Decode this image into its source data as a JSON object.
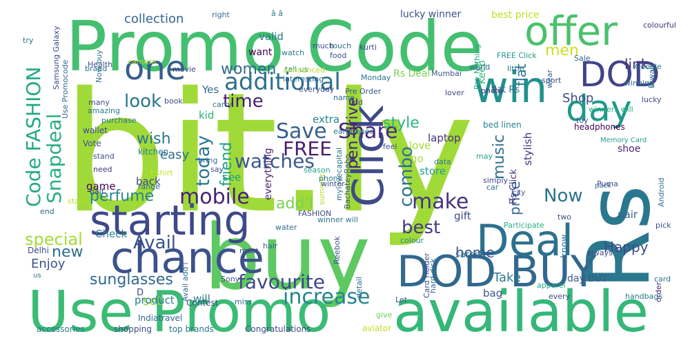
{
  "palette": [
    "#440154",
    "#482878",
    "#3e4989",
    "#31688e",
    "#26828e",
    "#1f9e89",
    "#35b779",
    "#6ece58",
    "#b5de2b",
    "#fde725"
  ],
  "words": [
    {
      "text": "bit.ly",
      "c": "#a0da39"
    },
    {
      "text": "buy",
      "c": "#5ec962"
    },
    {
      "text": "Promo Code",
      "c": "#44bf70"
    },
    {
      "text": "Use Promo",
      "c": "#3bbb75"
    },
    {
      "text": "Rs",
      "c": "#2a788e"
    },
    {
      "text": "available",
      "c": "#35b779"
    },
    {
      "text": "DOD BUY",
      "c": "#31688e"
    },
    {
      "text": "chance",
      "c": "#3b528b"
    },
    {
      "text": "starting",
      "c": "#3e4989"
    },
    {
      "text": "offer",
      "c": "#4ac16d"
    },
    {
      "text": "Click",
      "c": "#3e4a89"
    },
    {
      "text": "Deal",
      "c": "#2c718e"
    },
    {
      "text": "win",
      "c": "#21918c"
    },
    {
      "text": "DOD",
      "c": "#414487"
    },
    {
      "text": "day",
      "c": "#1f9a8a"
    },
    {
      "text": "one",
      "c": "#355f8d"
    },
    {
      "text": "additional",
      "c": "#2d708e"
    },
    {
      "text": "Code FASHION",
      "c": "#22a884"
    },
    {
      "text": "mobile",
      "c": "#482173"
    },
    {
      "text": "Snapdeal",
      "c": "#29af7f"
    },
    {
      "text": "Save",
      "c": "#34608d"
    },
    {
      "text": "Share",
      "c": "#482878"
    },
    {
      "text": "increase",
      "c": "#25858e"
    },
    {
      "text": "favourite",
      "c": "#3f4788"
    },
    {
      "text": "watches",
      "c": "#38598c"
    },
    {
      "text": "look",
      "c": "#2a768e"
    },
    {
      "text": "make",
      "c": "#46337f"
    },
    {
      "text": "Avail",
      "c": "#3b528b"
    },
    {
      "text": "best",
      "c": "#443983"
    },
    {
      "text": "time",
      "c": "#481d6f"
    },
    {
      "text": "today",
      "c": "#2a788e"
    },
    {
      "text": "combo",
      "c": "#2c728e"
    },
    {
      "text": "FREE",
      "c": "#481c6e"
    },
    {
      "text": "friend",
      "c": "#20a386"
    },
    {
      "text": "Now",
      "c": "#2c728e"
    },
    {
      "text": "special",
      "c": "#a5db36"
    },
    {
      "text": "sunglasses",
      "c": "#31678e"
    },
    {
      "text": "style",
      "c": "#2fb47c"
    },
    {
      "text": "add'l",
      "c": "#7ad151"
    },
    {
      "text": "perfume",
      "c": "#25848e"
    },
    {
      "text": "pen drive",
      "c": "#481f70"
    },
    {
      "text": "wish",
      "c": "#2a768e"
    },
    {
      "text": "women",
      "c": "#31678e"
    },
    {
      "text": "men",
      "c": "#c8e020"
    },
    {
      "text": "link",
      "c": "#46327e"
    },
    {
      "text": "new",
      "c": "#2e6d8e"
    },
    {
      "text": "music",
      "c": "#2e6e8e"
    },
    {
      "text": "Happy",
      "c": "#3e4c8a"
    },
    {
      "text": "home",
      "c": "#3b518b"
    },
    {
      "text": "price",
      "c": "#31678e"
    },
    {
      "text": "flat",
      "c": "#2c728e"
    },
    {
      "text": "collection",
      "c": "#32658e"
    },
    {
      "text": "Enjoy",
      "c": "#3b528b"
    },
    {
      "text": "Take",
      "c": "#2a788e"
    },
    {
      "text": "easy",
      "c": "#2e6e8e"
    },
    {
      "text": "Shop",
      "c": "#3e4c8a"
    },
    {
      "text": "set",
      "c": "#90d743"
    },
    {
      "text": "extra",
      "c": "#26828e"
    },
    {
      "text": "laptop",
      "c": "#472e7c"
    },
    {
      "text": "Keep",
      "c": "#35b779"
    },
    {
      "text": "see",
      "c": "#1fa088"
    },
    {
      "text": "kid",
      "c": "#29af7f"
    },
    {
      "text": "stylish",
      "c": "#46307e"
    },
    {
      "text": "product",
      "c": "#297b8e"
    },
    {
      "text": "bag",
      "c": "#3b528b"
    },
    {
      "text": "shoe",
      "c": "#482777"
    },
    {
      "text": "everything",
      "c": "#482475"
    },
    {
      "text": "game",
      "c": "#440154"
    },
    {
      "text": "valid",
      "c": "#2a788e"
    },
    {
      "text": "Yes",
      "c": "#31688e"
    },
    {
      "text": "Check",
      "c": "#26828e"
    },
    {
      "text": "back",
      "c": "#3e4a89"
    },
    {
      "text": "gift",
      "c": "#3e4989"
    },
    {
      "text": "pair",
      "c": "#355f8d"
    },
    {
      "text": "store",
      "c": "#1f9e89"
    },
    {
      "text": "love",
      "c": "#a5db36"
    },
    {
      "text": "go",
      "c": "#a8db34"
    },
    {
      "text": "will",
      "c": "#2a788e"
    },
    {
      "text": "best price",
      "c": "#c2df23"
    },
    {
      "text": "lucky winner",
      "c": "#3b528b"
    },
    {
      "text": "day BUY",
      "c": "#38588c"
    },
    {
      "text": "want",
      "c": "#440154"
    },
    {
      "text": "flat Rs",
      "c": "#31688e"
    },
    {
      "text": "Rs Click",
      "c": "#46307e"
    },
    {
      "text": "kitchen",
      "c": "#2a788e"
    },
    {
      "text": "wallet",
      "c": "#3e4a89"
    },
    {
      "text": "Vote",
      "c": "#3b528b"
    },
    {
      "text": "need",
      "c": "#46327e"
    },
    {
      "text": "range",
      "c": "#31688e"
    },
    {
      "text": "card",
      "c": "#287c8e"
    },
    {
      "text": "order",
      "c": "#482475"
    },
    {
      "text": "two",
      "c": "#3e4c8a"
    },
    {
      "text": "saree",
      "c": "#2d708e"
    },
    {
      "text": "know",
      "c": "#2d708e"
    },
    {
      "text": "D",
      "c": "#3e4989"
    },
    {
      "text": "Rs Deal",
      "c": "#7ad151"
    },
    {
      "text": "bed linen",
      "c": "#26828e"
    },
    {
      "text": "headphones",
      "c": "#440154"
    },
    {
      "text": "Memory Card",
      "c": "#1fa088"
    },
    {
      "text": "Google",
      "c": "#2a788e"
    },
    {
      "text": "colourful",
      "c": "#453781"
    },
    {
      "text": "lucky",
      "c": "#3e4989"
    },
    {
      "text": "toy",
      "c": "#3b528b"
    },
    {
      "text": "winners will",
      "c": "#27ad81"
    },
    {
      "text": "winning",
      "c": "#2c728e"
    },
    {
      "text": "Sale",
      "c": "#31688e"
    },
    {
      "text": "Diwali",
      "c": "#2e6e8e"
    },
    {
      "text": "sport",
      "c": "#3e4a89"
    },
    {
      "text": "wear",
      "c": "#355f8d"
    },
    {
      "text": "little",
      "c": "#2c718e"
    },
    {
      "text": "FREE Click",
      "c": "#1f9a8a"
    },
    {
      "text": "lover",
      "c": "#3e4c8a"
    },
    {
      "text": "Pay Nothing",
      "c": "#22a884"
    },
    {
      "text": "world",
      "c": "#31688e"
    },
    {
      "text": "photo",
      "c": "#443983"
    },
    {
      "text": "Mumbai",
      "c": "#3b528b"
    },
    {
      "text": "data",
      "c": "#2a788e"
    },
    {
      "text": "may",
      "c": "#22a884"
    },
    {
      "text": "feel",
      "c": "#3b528b"
    },
    {
      "text": "simply",
      "c": "#3e4c8a"
    },
    {
      "text": "car",
      "c": "#2e6e8e"
    },
    {
      "text": "city",
      "c": "#3e4989"
    },
    {
      "text": "pack",
      "c": "#31688e"
    },
    {
      "text": "Puma",
      "c": "#3e4a89"
    },
    {
      "text": "Android",
      "c": "#2c728e"
    },
    {
      "text": "pick",
      "c": "#3b528b"
    },
    {
      "text": "Participate",
      "c": "#27ad81"
    },
    {
      "text": "always",
      "c": "#3e4989"
    },
    {
      "text": "apparel",
      "c": "#22a884"
    },
    {
      "text": "every",
      "c": "#3e4a89"
    },
    {
      "text": "handbags",
      "c": "#2a788e"
    },
    {
      "text": "hard disk",
      "c": "#31688e"
    },
    {
      "text": "Card Holder",
      "c": "#3e4c8a"
    },
    {
      "text": "detail",
      "c": "#31688e"
    },
    {
      "text": "Let",
      "c": "#3b528b"
    },
    {
      "text": "give",
      "c": "#6ece58"
    },
    {
      "text": "aviator",
      "c": "#c2df23"
    },
    {
      "text": "Congratulations",
      "c": "#3e4989"
    },
    {
      "text": "top brands",
      "c": "#2a788e"
    },
    {
      "text": "Indiatravel",
      "c": "#31688e"
    },
    {
      "text": "shopping",
      "c": "#3e4a89"
    },
    {
      "text": "accessories",
      "c": "#287c8e"
    },
    {
      "text": "Delhi",
      "c": "#3e4989"
    },
    {
      "text": "us",
      "c": "#2c728e"
    },
    {
      "text": "Contest",
      "c": "#3b528b"
    },
    {
      "text": "miss",
      "c": "#2e6e8e"
    },
    {
      "text": "must",
      "c": "#3e4a89"
    },
    {
      "text": "Sony",
      "c": "#3e4c8a"
    },
    {
      "text": "Avail add'l",
      "c": "#31688e"
    },
    {
      "text": "Reebok",
      "c": "#3b528b"
    },
    {
      "text": "winner will",
      "c": "#2a788e"
    },
    {
      "text": "colour",
      "c": "#26828e"
    },
    {
      "text": "FASHION",
      "c": "#3e4989"
    },
    {
      "text": "water",
      "c": "#2e6e8e"
    },
    {
      "text": "hair",
      "c": "#31688e"
    },
    {
      "text": "summer",
      "c": "#b5de2b"
    },
    {
      "text": "mylovecapital",
      "c": "#2c728e"
    },
    {
      "text": "BachateyRaho",
      "c": "#3b528b"
    },
    {
      "text": "winter",
      "c": "#3e4a89"
    },
    {
      "text": "phone",
      "c": "#2a788e"
    },
    {
      "text": "season",
      "c": "#22a884"
    },
    {
      "text": "say",
      "c": "#3e4c8a"
    },
    {
      "text": "bring",
      "c": "#2e6e8e"
    },
    {
      "text": "t shirt",
      "c": "#c8e020"
    },
    {
      "text": "half",
      "c": "#3e4989"
    },
    {
      "text": "end",
      "c": "#31688e"
    },
    {
      "text": "start",
      "c": "#b5de2b"
    },
    {
      "text": "stand",
      "c": "#3b528b"
    },
    {
      "text": "purchase",
      "c": "#2c728e"
    },
    {
      "text": "amazing",
      "c": "#2a788e"
    },
    {
      "text": "book",
      "c": "#3e4a89"
    },
    {
      "text": "carry",
      "c": "#2e6e8e"
    },
    {
      "text": "everyday",
      "c": "#3e4c8a"
    },
    {
      "text": "name",
      "c": "#31688e"
    },
    {
      "text": "Pre Order",
      "c": "#3b528b"
    },
    {
      "text": "earphones",
      "c": "#2a788e"
    },
    {
      "text": "find",
      "c": "#3e4989"
    },
    {
      "text": "Monday",
      "c": "#2c728e"
    },
    {
      "text": "tell us",
      "c": "#26828e"
    },
    {
      "text": "movie",
      "c": "#3e4a89"
    },
    {
      "text": "interesting",
      "c": "#31688e"
    },
    {
      "text": "announced",
      "c": "#b5de2b"
    },
    {
      "text": "food",
      "c": "#3b528b"
    },
    {
      "text": "touch",
      "c": "#2e6e8e"
    },
    {
      "text": "much",
      "c": "#3e4c8a"
    },
    {
      "text": "watch",
      "c": "#2a788e"
    },
    {
      "text": "right",
      "c": "#31688e"
    },
    {
      "text": "Samsung Galaxy",
      "c": "#3e4989"
    },
    {
      "text": "Now buy",
      "c": "#2c728e"
    },
    {
      "text": "Health",
      "c": "#3b528b"
    },
    {
      "text": "camera",
      "c": "#b5de2b"
    },
    {
      "text": "brand",
      "c": "#2a788e"
    },
    {
      "text": "many",
      "c": "#3e4a89"
    },
    {
      "text": "Use Promocode",
      "c": "#31688e"
    },
    {
      "text": "try",
      "c": "#2e6e8e"
    },
    {
      "text": "kurti",
      "c": "#3e4989"
    },
    {
      "text": "â â",
      "c": "#2c728e"
    }
  ]
}
